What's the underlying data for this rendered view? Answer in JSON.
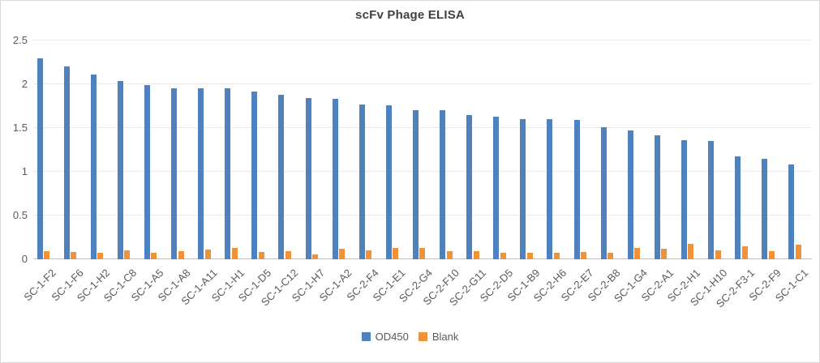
{
  "chart_data": {
    "type": "bar",
    "title": "scFv Phage ELISA",
    "categories": [
      "SC-1-F2",
      "SC-1-F6",
      "SC-1-H2",
      "SC-1-C8",
      "SC-1-A5",
      "SC-1-A8",
      "SC-1-A11",
      "SC-1-H1",
      "SC-1-D5",
      "SC-1-C12",
      "SC-1-H7",
      "SC-1-A2",
      "SC-2-F4",
      "SC-1-E1",
      "SC-2-G4",
      "SC-2-F10",
      "SC-2-G11",
      "SC-2-D5",
      "SC-1-B9",
      "SC-2-H6",
      "SC-2-E7",
      "SC-2-B8",
      "SC-1-G4",
      "SC-2-A1",
      "SC-2-H1",
      "SC-1-H10",
      "SC-2-F3-1",
      "SC-2-F9",
      "SC-1-C1"
    ],
    "series": [
      {
        "name": "OD450",
        "color": "#4e81bd",
        "values": [
          2.3,
          2.2,
          2.11,
          2.04,
          1.99,
          1.95,
          1.95,
          1.95,
          1.92,
          1.88,
          1.84,
          1.83,
          1.77,
          1.76,
          1.7,
          1.7,
          1.65,
          1.63,
          1.6,
          1.6,
          1.59,
          1.51,
          1.47,
          1.42,
          1.36,
          1.35,
          1.18,
          1.15,
          1.08
        ]
      },
      {
        "name": "Blank",
        "color": "#f0913c",
        "values": [
          0.09,
          0.08,
          0.07,
          0.1,
          0.07,
          0.09,
          0.11,
          0.13,
          0.08,
          0.09,
          0.06,
          0.12,
          0.1,
          0.13,
          0.13,
          0.09,
          0.09,
          0.07,
          0.07,
          0.07,
          0.08,
          0.07,
          0.13,
          0.12,
          0.18,
          0.1,
          0.15,
          0.09,
          0.17
        ]
      }
    ],
    "xlabel": "",
    "ylabel": "",
    "ylim": [
      0,
      2.5
    ],
    "ytick_step": 0.5,
    "ytick_labels": [
      "0",
      "0.5",
      "1",
      "1.5",
      "2",
      "2.5"
    ],
    "grid": true,
    "legend_position": "bottom",
    "colors": {
      "title_text": "#404040",
      "axis_text": "#595959",
      "gridline": "#e8e8e8",
      "axis_line": "#bfbfbf",
      "chart_border": "#d9d9d9",
      "background": "#ffffff"
    }
  }
}
